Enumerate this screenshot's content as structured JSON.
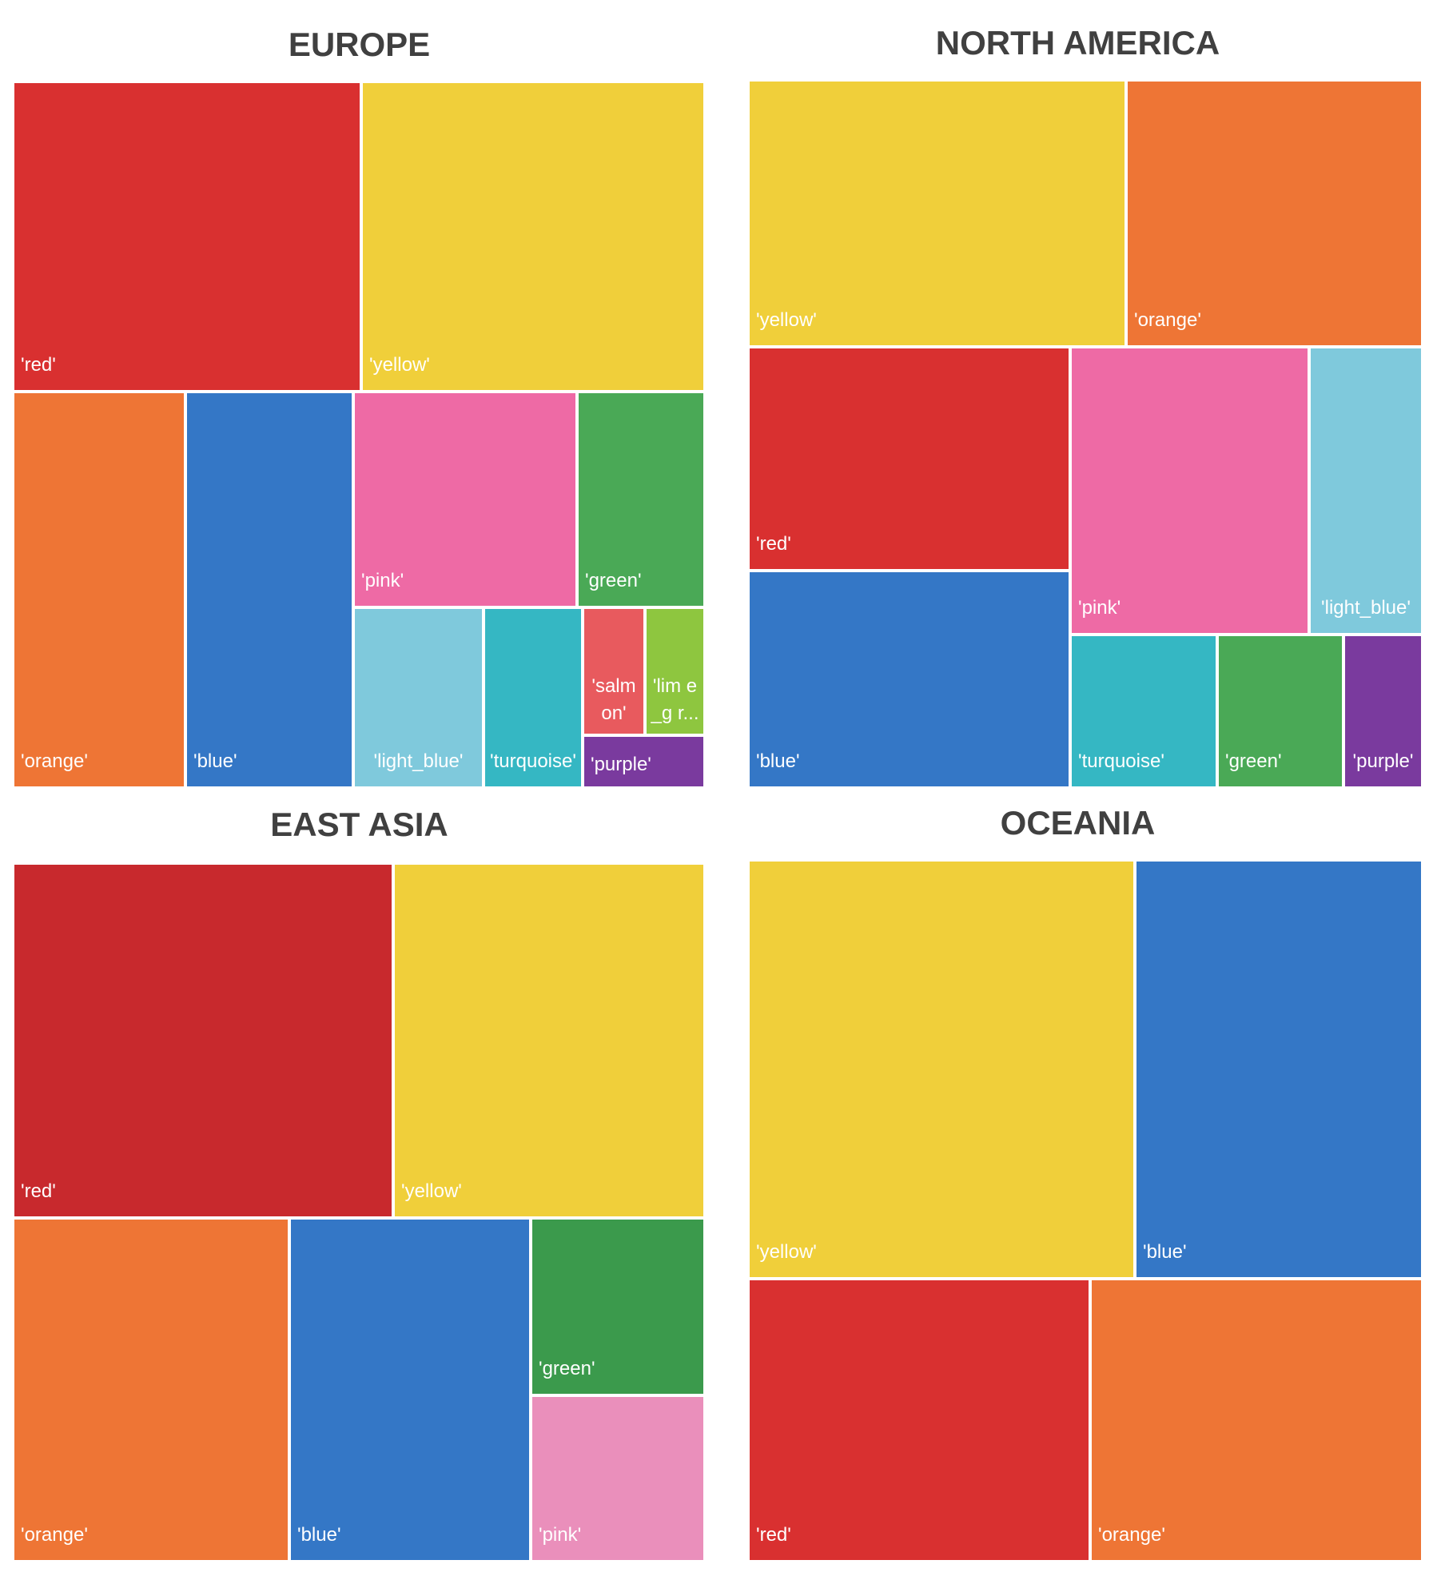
{
  "colors": {
    "red": "#d93030",
    "yellow": "#f0cf3a",
    "orange": "#ee7535",
    "blue": "#3477c6",
    "pink": "#ee6aa5",
    "green": "#4aa956",
    "light_blue": "#7fc9dc",
    "turquoise": "#35b7c3",
    "salmon": "#e85a5e",
    "lime": "#8ec63f",
    "purple": "#7a3a9e",
    "light_pink": "#ea8fbb",
    "dark_red": "#c8292d",
    "dark_green": "#3b9a4c"
  },
  "chart_data": [
    {
      "type": "treemap",
      "title": "EUROPE",
      "items": [
        {
          "label": "'red'",
          "color": "red"
        },
        {
          "label": "'yellow'",
          "color": "yellow"
        },
        {
          "label": "'orange'",
          "color": "orange"
        },
        {
          "label": "'blue'",
          "color": "blue"
        },
        {
          "label": "'pink'",
          "color": "pink"
        },
        {
          "label": "'green'",
          "color": "green"
        },
        {
          "label": "'light_blue'",
          "color": "light_blue"
        },
        {
          "label": "'turquoise'",
          "color": "turquoise"
        },
        {
          "label": "'salmon'",
          "color": "salmon"
        },
        {
          "label": "'lim e_g r...",
          "color": "lime"
        },
        {
          "label": "'purple'",
          "color": "purple"
        }
      ]
    },
    {
      "type": "treemap",
      "title": "NORTH AMERICA",
      "items": [
        {
          "label": "'yellow'",
          "color": "yellow"
        },
        {
          "label": "'orange'",
          "color": "orange"
        },
        {
          "label": "'red'",
          "color": "red"
        },
        {
          "label": "'pink'",
          "color": "pink"
        },
        {
          "label": "'light_blue'",
          "color": "light_blue"
        },
        {
          "label": "'blue'",
          "color": "blue"
        },
        {
          "label": "'turquoise'",
          "color": "turquoise"
        },
        {
          "label": "'green'",
          "color": "green"
        },
        {
          "label": "'purple'",
          "color": "purple"
        }
      ]
    },
    {
      "type": "treemap",
      "title": "EAST ASIA",
      "items": [
        {
          "label": "'red'",
          "color": "dark_red"
        },
        {
          "label": "'yellow'",
          "color": "yellow"
        },
        {
          "label": "'orange'",
          "color": "orange"
        },
        {
          "label": "'blue'",
          "color": "blue"
        },
        {
          "label": "'green'",
          "color": "dark_green"
        },
        {
          "label": "'pink'",
          "color": "light_pink"
        }
      ]
    },
    {
      "type": "treemap",
      "title": "OCEANIA",
      "items": [
        {
          "label": "'yellow'",
          "color": "yellow"
        },
        {
          "label": "'blue'",
          "color": "blue"
        },
        {
          "label": "'red'",
          "color": "red"
        },
        {
          "label": "'orange'",
          "color": "orange"
        }
      ]
    }
  ]
}
